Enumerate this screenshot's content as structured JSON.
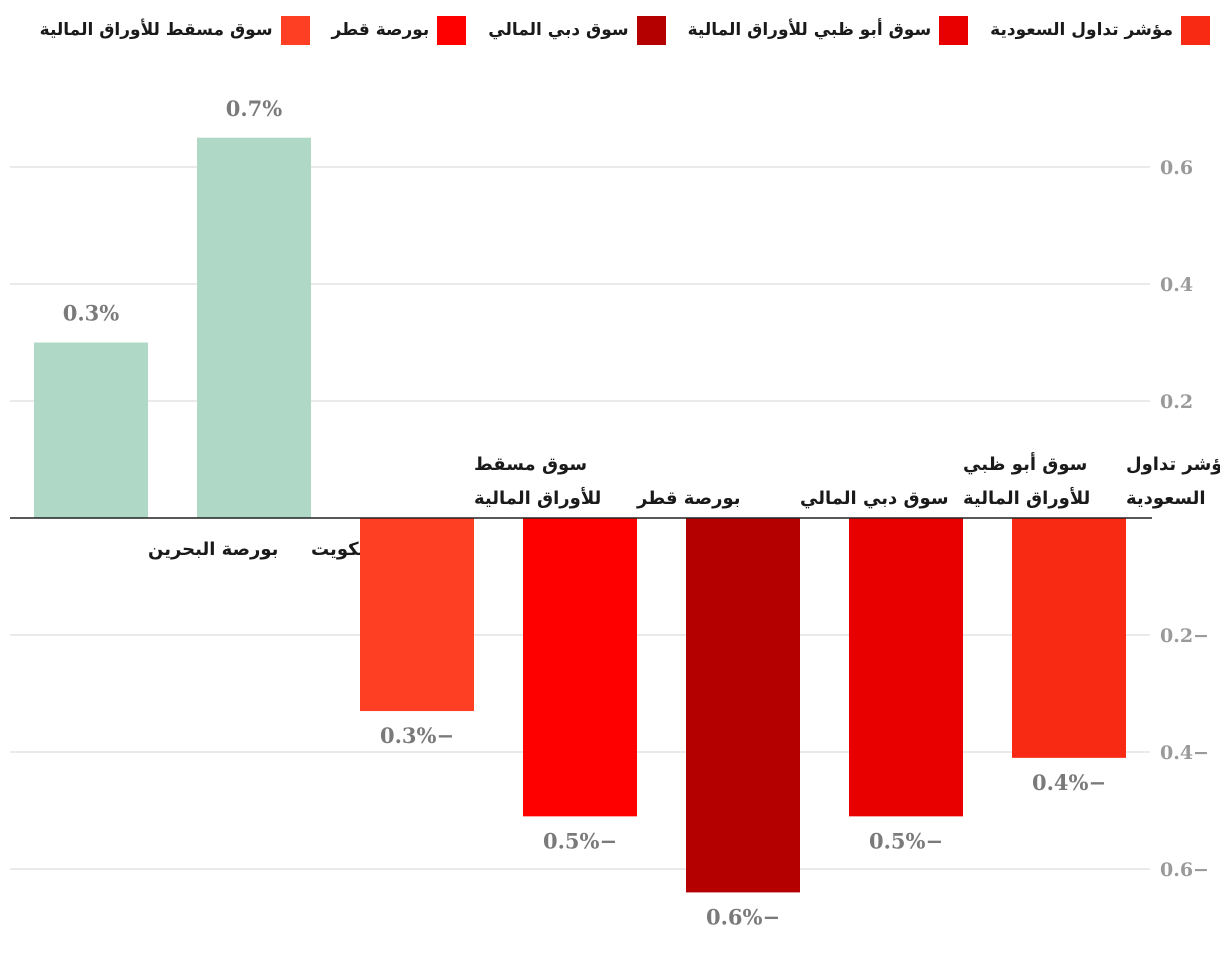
{
  "chart_data": {
    "type": "bar",
    "title": "",
    "xlabel": "",
    "ylabel": "",
    "ylim": [
      -0.66,
      0.72
    ],
    "yticks": [
      {
        "value": 0.6,
        "label": "0.6"
      },
      {
        "value": 0.4,
        "label": "0.4"
      },
      {
        "value": 0.2,
        "label": "0.2"
      },
      {
        "value": -0.2,
        "label": "0.2−"
      },
      {
        "value": -0.4,
        "label": "0.4−"
      },
      {
        "value": -0.6,
        "label": "0.6−"
      }
    ],
    "grid": true,
    "legend_position": "top-right",
    "categories": [
      {
        "label_lines": [
          "بورصة البحرين"
        ],
        "value": 0.3,
        "display": "0.3%",
        "color": "#b0d8c6",
        "in_legend": false
      },
      {
        "label_lines": [
          "بورصة الكويت"
        ],
        "value": 0.65,
        "display": "0.7%",
        "color": "#b0d8c6",
        "in_legend": false
      },
      {
        "label_lines": [
          "سوق مسقط",
          "للأوراق المالية"
        ],
        "value": -0.33,
        "display": "0.3%−",
        "color": "#ff3f24",
        "in_legend": true
      },
      {
        "label_lines": [
          "بورصة قطر"
        ],
        "value": -0.51,
        "display": "0.5%−",
        "color": "#ff0000",
        "in_legend": true
      },
      {
        "label_lines": [
          "سوق دبي المالي"
        ],
        "value": -0.64,
        "display": "0.6%−",
        "color": "#b50000",
        "in_legend": true
      },
      {
        "label_lines": [
          "سوق أبو ظبي",
          "للأوراق المالية"
        ],
        "value": -0.51,
        "display": "0.5%−",
        "color": "#e80000",
        "in_legend": true
      },
      {
        "label_lines": [
          "مؤشر تداول",
          "السعودية"
        ],
        "value": -0.41,
        "display": "0.4%−",
        "color": "#f82a14",
        "in_legend": true
      }
    ]
  },
  "legend": [
    {
      "label": "مؤشر تداول السعودية",
      "color": "#f82a14"
    },
    {
      "label": "سوق أبو ظبي للأوراق المالية",
      "color": "#e80000"
    },
    {
      "label": "سوق دبي المالي",
      "color": "#b50000"
    },
    {
      "label": "بورصة قطر",
      "color": "#ff0000"
    },
    {
      "label": "سوق مسقط للأوراق المالية",
      "color": "#ff3f24"
    }
  ]
}
